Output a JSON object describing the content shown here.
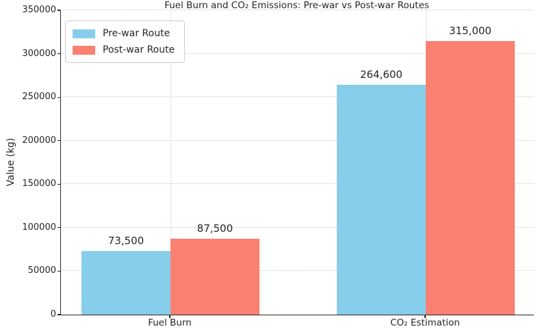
{
  "chart_data": {
    "type": "bar",
    "title": "Fuel Burn and CO₂ Emissions: Pre-war vs Post-war Routes",
    "xlabel": "",
    "ylabel": "Value (kg)",
    "categories": [
      "Fuel Burn",
      "CO₂ Estimation"
    ],
    "series": [
      {
        "name": "Pre-war Route",
        "color": "#87CEEB",
        "values": [
          73500,
          264600
        ]
      },
      {
        "name": "Post-war Route",
        "color": "#FA8072",
        "values": [
          87500,
          315000
        ]
      }
    ],
    "bar_value_labels": [
      [
        "73,500",
        "264,600"
      ],
      [
        "87,500",
        "315,000"
      ]
    ],
    "ylim": [
      0,
      350000
    ],
    "ytick_step": 50000,
    "ytick_labels": [
      "0",
      "50000",
      "100000",
      "150000",
      "200000",
      "250000",
      "300000",
      "350000"
    ],
    "grid": "dotted",
    "legend_position": "upper-left",
    "axis_color": "#262626",
    "grid_color": "#c9c9c9"
  }
}
